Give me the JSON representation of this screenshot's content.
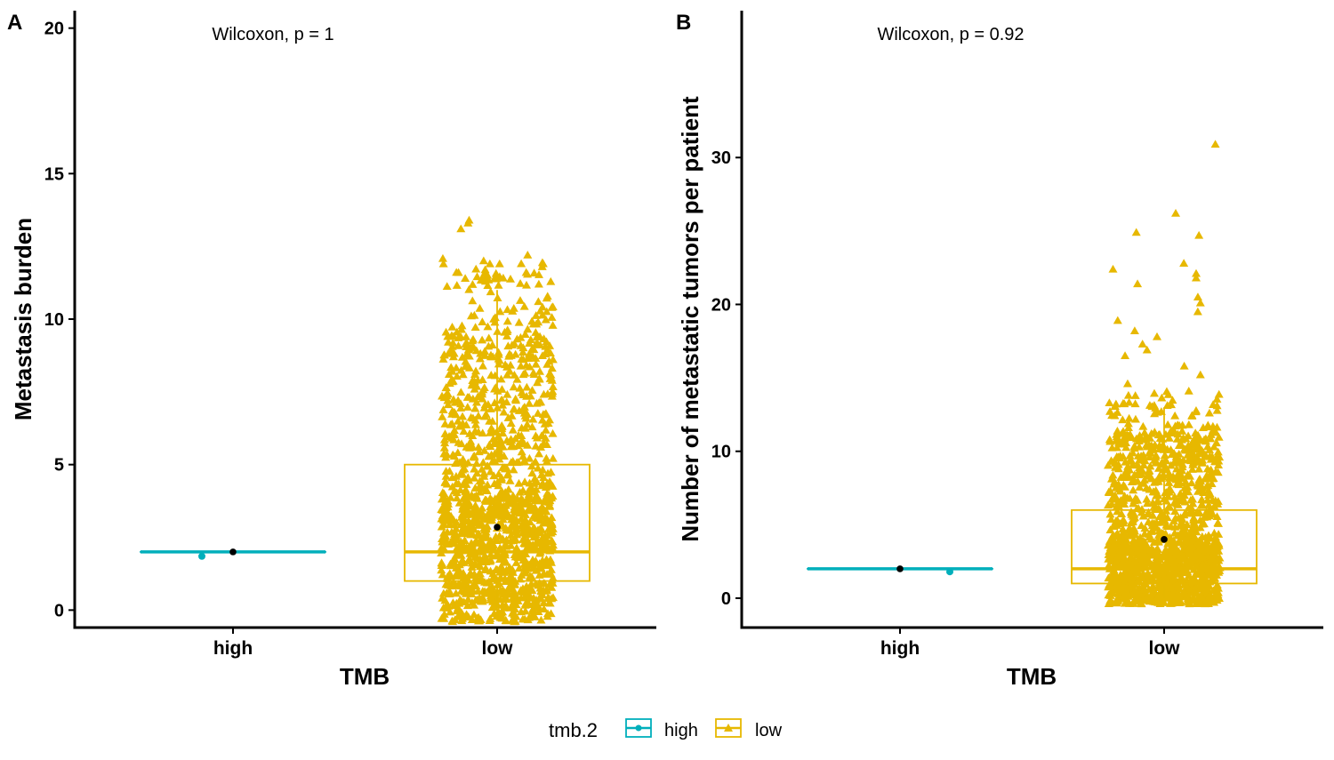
{
  "colors": {
    "high": "#00AFBB",
    "low": "#E7B800",
    "mean": "#000000",
    "axis": "#000000"
  },
  "chart_data": [
    {
      "type": "box",
      "panel_label": "A",
      "annotation": "Wilcoxon, p = 1",
      "xlabel": "TMB",
      "ylabel": "Metastasis burden",
      "ylim": [
        -0.6,
        20.6
      ],
      "yticks": [
        "0",
        "5",
        "10",
        "15",
        "20"
      ],
      "categories": [
        "high",
        "low"
      ],
      "boxes": [
        {
          "group": "high",
          "min": 2,
          "q1": 2,
          "median": 2,
          "q3": 2,
          "max": 2,
          "mean": 2
        },
        {
          "group": "low",
          "min": 0,
          "q1": 1,
          "median": 2,
          "q3": 5,
          "max": 11,
          "mean": 2.85
        }
      ],
      "points": {
        "high": [
          1.85
        ],
        "low_range": [
          -0.4,
          13.4
        ],
        "low_outliers": [
          13.4,
          13.3,
          13.1,
          12.2,
          12.0,
          11.9,
          11.9,
          11.8,
          11.6,
          11.5,
          11.4,
          11.3,
          11.2
        ]
      }
    },
    {
      "type": "box",
      "panel_label": "B",
      "annotation": "Wilcoxon, p = 0.92",
      "xlabel": "TMB",
      "ylabel": "Number of metastatic tumors per patient",
      "ylim": [
        -2,
        40
      ],
      "yticks": [
        "0",
        "10",
        "20",
        "30"
      ],
      "categories": [
        "high",
        "low"
      ],
      "boxes": [
        {
          "group": "high",
          "min": 2,
          "q1": 2,
          "median": 2,
          "q3": 2,
          "max": 2,
          "mean": 2
        },
        {
          "group": "low",
          "min": 0,
          "q1": 1,
          "median": 2,
          "q3": 6,
          "max": 13,
          "mean": 4
        }
      ],
      "points": {
        "high": [
          1.8
        ],
        "low_range": [
          -0.4,
          31
        ],
        "low_outliers": [
          30.9,
          26.2,
          24.9,
          24.7,
          22.8,
          22.4,
          22.1,
          21.8,
          21.4,
          20.5,
          20.1,
          19.5,
          18.9,
          18.2,
          17.8,
          17.3,
          16.9,
          16.5,
          15.8,
          15.2,
          14.6,
          14.1,
          13.8
        ]
      }
    }
  ],
  "legend": {
    "title": "tmb.2",
    "items": [
      "high",
      "low"
    ]
  }
}
